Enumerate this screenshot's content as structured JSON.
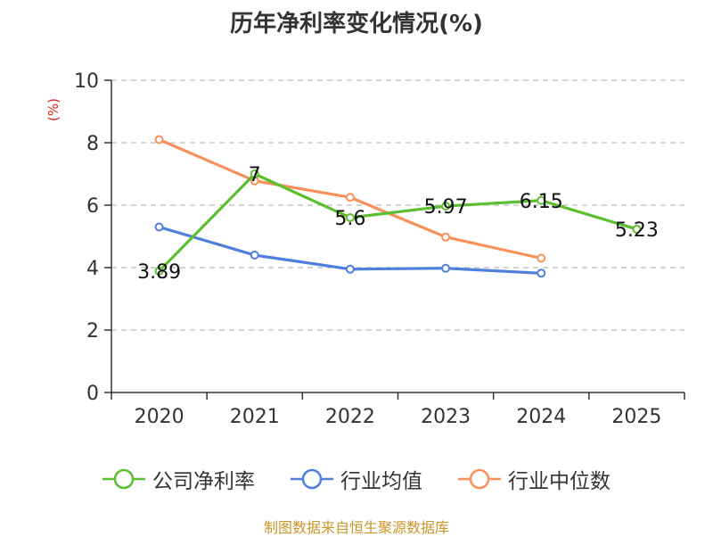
{
  "title": "历年净利率变化情况(%)",
  "unit_label": "(%)",
  "source": "制图数据来自恒生聚源数据库",
  "colors": {
    "company": "#5cbf2f",
    "industry_avg": "#4f7fdc",
    "industry_median": "#f7905a",
    "grid": "#bbbbbb",
    "axis": "#333333"
  },
  "chart_data": {
    "type": "line",
    "title": "历年净利率变化情况(%)",
    "ylabel": "(%)",
    "xlabel": "",
    "categories": [
      "2020",
      "2021",
      "2022",
      "2023",
      "2024",
      "2025"
    ],
    "ylim": [
      0,
      10
    ],
    "yticks": [
      0,
      2,
      4,
      6,
      8,
      10
    ],
    "grid": true,
    "legend_position": "bottom",
    "series": [
      {
        "name": "公司净利率",
        "key": "company",
        "values": [
          3.89,
          7,
          5.6,
          5.97,
          6.15,
          5.23
        ],
        "labels": [
          "3.89",
          "7",
          "5.6",
          "5.97",
          "6.15",
          "5.23"
        ]
      },
      {
        "name": "行业均值",
        "key": "industry_avg",
        "values": [
          5.3,
          4.4,
          3.95,
          3.98,
          3.82,
          null
        ]
      },
      {
        "name": "行业中位数",
        "key": "industry_median",
        "values": [
          8.1,
          6.78,
          6.25,
          4.98,
          4.3,
          null
        ]
      }
    ]
  }
}
